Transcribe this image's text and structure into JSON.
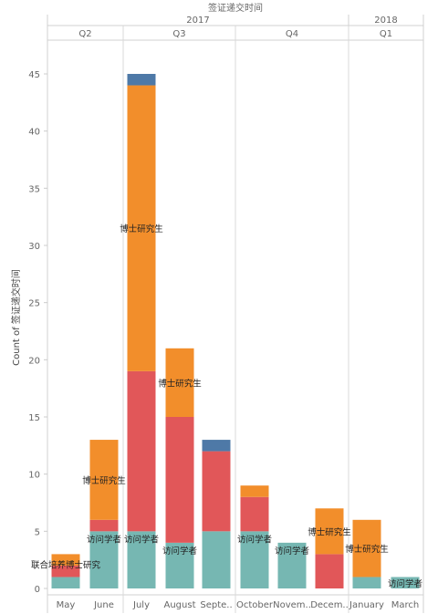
{
  "chart_data": {
    "type": "bar",
    "stacked": true,
    "header": {
      "title": "签证递交时间",
      "years": [
        {
          "label": "2017"
        },
        {
          "label": "2018"
        }
      ],
      "quarters": [
        {
          "label": "Q2"
        },
        {
          "label": "Q3"
        },
        {
          "label": "Q4"
        },
        {
          "label": "Q1"
        }
      ]
    },
    "categories": [
      "May",
      "June",
      "July",
      "August",
      "Septe..",
      "October",
      "Novem..",
      "Decem..",
      "January",
      "March"
    ],
    "ylabel": "Count of 签证递交时间",
    "ylim": [
      0,
      47
    ],
    "yticks": [
      0,
      5,
      10,
      15,
      20,
      25,
      30,
      35,
      40,
      45
    ],
    "grid": false,
    "series": [
      {
        "name": "访问学者",
        "color": "#76b7b2",
        "values": [
          1,
          5,
          5,
          4,
          5,
          5,
          4,
          0,
          1,
          1
        ]
      },
      {
        "name": "",
        "color": "#e15759",
        "values": [
          1,
          1,
          14,
          11,
          7,
          3,
          0,
          3,
          0,
          0
        ]
      },
      {
        "name": "博士研究生",
        "color": "#f28e2b",
        "values": [
          1,
          7,
          25,
          6,
          0,
          1,
          0,
          4,
          5,
          0
        ]
      },
      {
        "name": "",
        "color": "#4e79a7",
        "values": [
          0,
          0,
          1,
          0,
          1,
          0,
          0,
          0,
          0,
          0
        ]
      }
    ],
    "annotations": [
      {
        "category": "May",
        "series": 0,
        "text": "联合培养博士研究"
      },
      {
        "category": "June",
        "series": 0,
        "text": "访问学者"
      },
      {
        "category": "June",
        "series": 2,
        "text": "博士研究生"
      },
      {
        "category": "July",
        "series": 0,
        "text": "访问学者"
      },
      {
        "category": "July",
        "series": 2,
        "text": "博士研究生"
      },
      {
        "category": "August",
        "series": 0,
        "text": "访问学者"
      },
      {
        "category": "August",
        "series": 2,
        "text": "博士研究生"
      },
      {
        "category": "October",
        "series": 0,
        "text": "访问学者"
      },
      {
        "category": "Novem..",
        "series": 0,
        "text": "访问学者"
      },
      {
        "category": "Decem..",
        "series": 2,
        "text": "博士研究生"
      },
      {
        "category": "January",
        "series": 2,
        "text": "博士研究生"
      },
      {
        "category": "March",
        "series": 0,
        "text": "访问学者"
      }
    ]
  }
}
